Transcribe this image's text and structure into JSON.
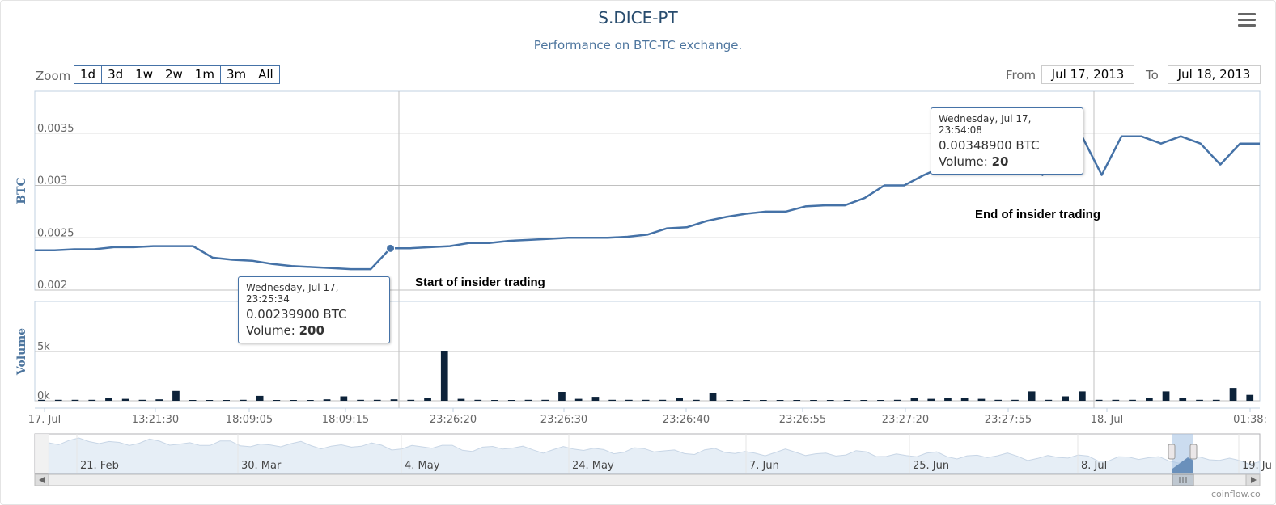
{
  "chart_data": {
    "type": "line",
    "title": "S.DICE-PT",
    "subtitle": "Performance on BTC-TC exchange.",
    "y_axis_title": "BTC",
    "y_ticks": [
      "0.002",
      "0.0025",
      "0.003",
      "0.0035"
    ],
    "ylim": [
      0.002,
      0.0039
    ],
    "volume_axis_title": "Volume",
    "volume_ticks": [
      "0k",
      "5k"
    ],
    "volume_ylim": [
      0,
      5000
    ],
    "x_tick_labels": [
      "17. Jul",
      "13:21:30",
      "18:09:05",
      "18:09:15",
      "23:26:20",
      "23:26:30",
      "23:26:40",
      "23:26:55",
      "23:27:20",
      "23:27:55",
      "18. Jul",
      "01:38:"
    ],
    "grid": true,
    "colors": {
      "price_line": "#4572a7",
      "volume_bar": "#0d233a",
      "grid": "#c0c0c0"
    },
    "series": [
      {
        "name": "BTC",
        "type": "line",
        "values": [
          0.00238,
          0.00238,
          0.00239,
          0.00239,
          0.00241,
          0.00241,
          0.00242,
          0.00242,
          0.00242,
          0.00231,
          0.00229,
          0.00228,
          0.00225,
          0.00223,
          0.00222,
          0.00221,
          0.0022,
          0.0022,
          0.002399,
          0.0024,
          0.00241,
          0.00242,
          0.00245,
          0.00245,
          0.00247,
          0.00248,
          0.00249,
          0.0025,
          0.0025,
          0.0025,
          0.00251,
          0.00253,
          0.00259,
          0.0026,
          0.00266,
          0.0027,
          0.00273,
          0.00275,
          0.00275,
          0.0028,
          0.00281,
          0.00281,
          0.00288,
          0.003,
          0.003,
          0.0031,
          0.00318,
          0.00328,
          0.00335,
          0.00336,
          0.003489,
          0.0031,
          0.00347,
          0.00347,
          0.0031,
          0.00347,
          0.00347,
          0.0034,
          0.00347,
          0.0034,
          0.0032,
          0.0034,
          0.0034
        ]
      },
      {
        "name": "Volume",
        "type": "column",
        "values": [
          100,
          100,
          100,
          100,
          300,
          200,
          100,
          150,
          1000,
          80,
          80,
          80,
          100,
          500,
          80,
          80,
          80,
          150,
          450,
          100,
          100,
          150,
          100,
          300,
          5000,
          200,
          100,
          80,
          80,
          100,
          100,
          900,
          200,
          400,
          100,
          100,
          100,
          100,
          300,
          100,
          800,
          80,
          80,
          80,
          80,
          80,
          80,
          80,
          80,
          80,
          80,
          100,
          300,
          200,
          300,
          250,
          200,
          100,
          100,
          950,
          100,
          450,
          950,
          100,
          100,
          100,
          300,
          950,
          300,
          100,
          100,
          1300,
          600
        ]
      }
    ],
    "navigator": {
      "labels": [
        "21. Feb",
        "30. Mar",
        "4. May",
        "24. May",
        "7. Jun",
        "25. Jun",
        "8. Jul",
        "19. Ju"
      ]
    }
  },
  "zoom": {
    "label": "Zoom",
    "buttons": [
      "1d",
      "3d",
      "1w",
      "2w",
      "1m",
      "3m",
      "All"
    ]
  },
  "range": {
    "from_label": "From",
    "from_value": "Jul 17, 2013",
    "to_label": "To",
    "to_value": "Jul 18, 2013"
  },
  "tooltips": [
    {
      "date": "Wednesday, Jul 17, 23:25:34",
      "price": "0.00239900 BTC",
      "volume_label": "Volume:",
      "volume_value": "200"
    },
    {
      "date": "Wednesday, Jul 17, 23:54:08",
      "price": "0.00348900 BTC",
      "volume_label": "Volume:",
      "volume_value": "20"
    }
  ],
  "annotations": {
    "start": "Start of insider trading",
    "end": "End of insider trading"
  },
  "credit": "coinflow.co"
}
